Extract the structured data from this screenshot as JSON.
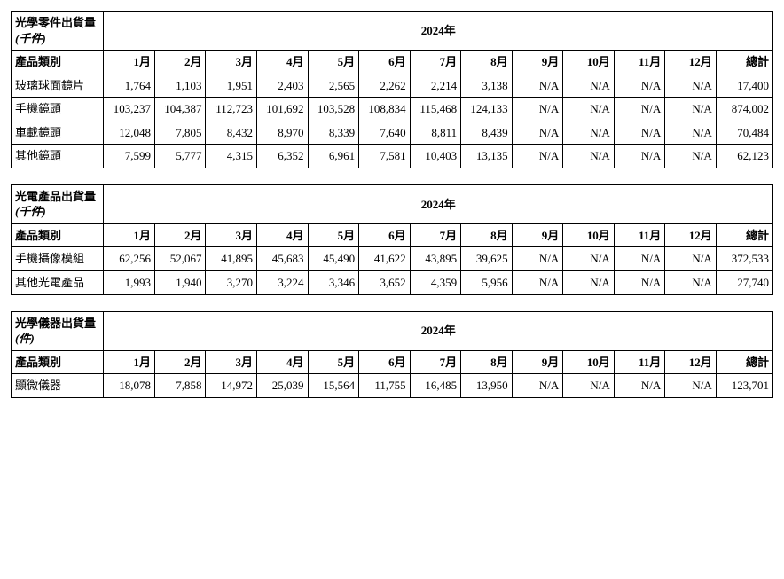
{
  "year_label": "2024年",
  "category_header": "產品類別",
  "months": [
    "1月",
    "2月",
    "3月",
    "4月",
    "5月",
    "6月",
    "7月",
    "8月",
    "9月",
    "10月",
    "11月",
    "12月"
  ],
  "total_header": "總計",
  "tables": [
    {
      "title_lines": [
        "光學零件出貨量",
        "(千件)"
      ],
      "rows": [
        {
          "label": "玻璃球面鏡片",
          "values": [
            "1,764",
            "1,103",
            "1,951",
            "2,403",
            "2,565",
            "2,262",
            "2,214",
            "3,138",
            "N/A",
            "N/A",
            "N/A",
            "N/A"
          ],
          "total": "17,400"
        },
        {
          "label": "手機鏡頭",
          "values": [
            "103,237",
            "104,387",
            "112,723",
            "101,692",
            "103,528",
            "108,834",
            "115,468",
            "124,133",
            "N/A",
            "N/A",
            "N/A",
            "N/A"
          ],
          "total": "874,002"
        },
        {
          "label": "車載鏡頭",
          "values": [
            "12,048",
            "7,805",
            "8,432",
            "8,970",
            "8,339",
            "7,640",
            "8,811",
            "8,439",
            "N/A",
            "N/A",
            "N/A",
            "N/A"
          ],
          "total": "70,484"
        },
        {
          "label": "其他鏡頭",
          "values": [
            "7,599",
            "5,777",
            "4,315",
            "6,352",
            "6,961",
            "7,581",
            "10,403",
            "13,135",
            "N/A",
            "N/A",
            "N/A",
            "N/A"
          ],
          "total": "62,123"
        }
      ]
    },
    {
      "title_lines": [
        "光電產品出貨量",
        "(千件)"
      ],
      "rows": [
        {
          "label": "手機攝像模組",
          "values": [
            "62,256",
            "52,067",
            "41,895",
            "45,683",
            "45,490",
            "41,622",
            "43,895",
            "39,625",
            "N/A",
            "N/A",
            "N/A",
            "N/A"
          ],
          "total": "372,533"
        },
        {
          "label": "其他光電產品",
          "values": [
            "1,993",
            "1,940",
            "3,270",
            "3,224",
            "3,346",
            "3,652",
            "4,359",
            "5,956",
            "N/A",
            "N/A",
            "N/A",
            "N/A"
          ],
          "total": "27,740"
        }
      ]
    },
    {
      "title_lines": [
        "光學儀器出貨量",
        "(件)"
      ],
      "rows": [
        {
          "label": "顯微儀器",
          "values": [
            "18,078",
            "7,858",
            "14,972",
            "25,039",
            "15,564",
            "11,755",
            "16,485",
            "13,950",
            "N/A",
            "N/A",
            "N/A",
            "N/A"
          ],
          "total": "123,701"
        }
      ]
    }
  ]
}
